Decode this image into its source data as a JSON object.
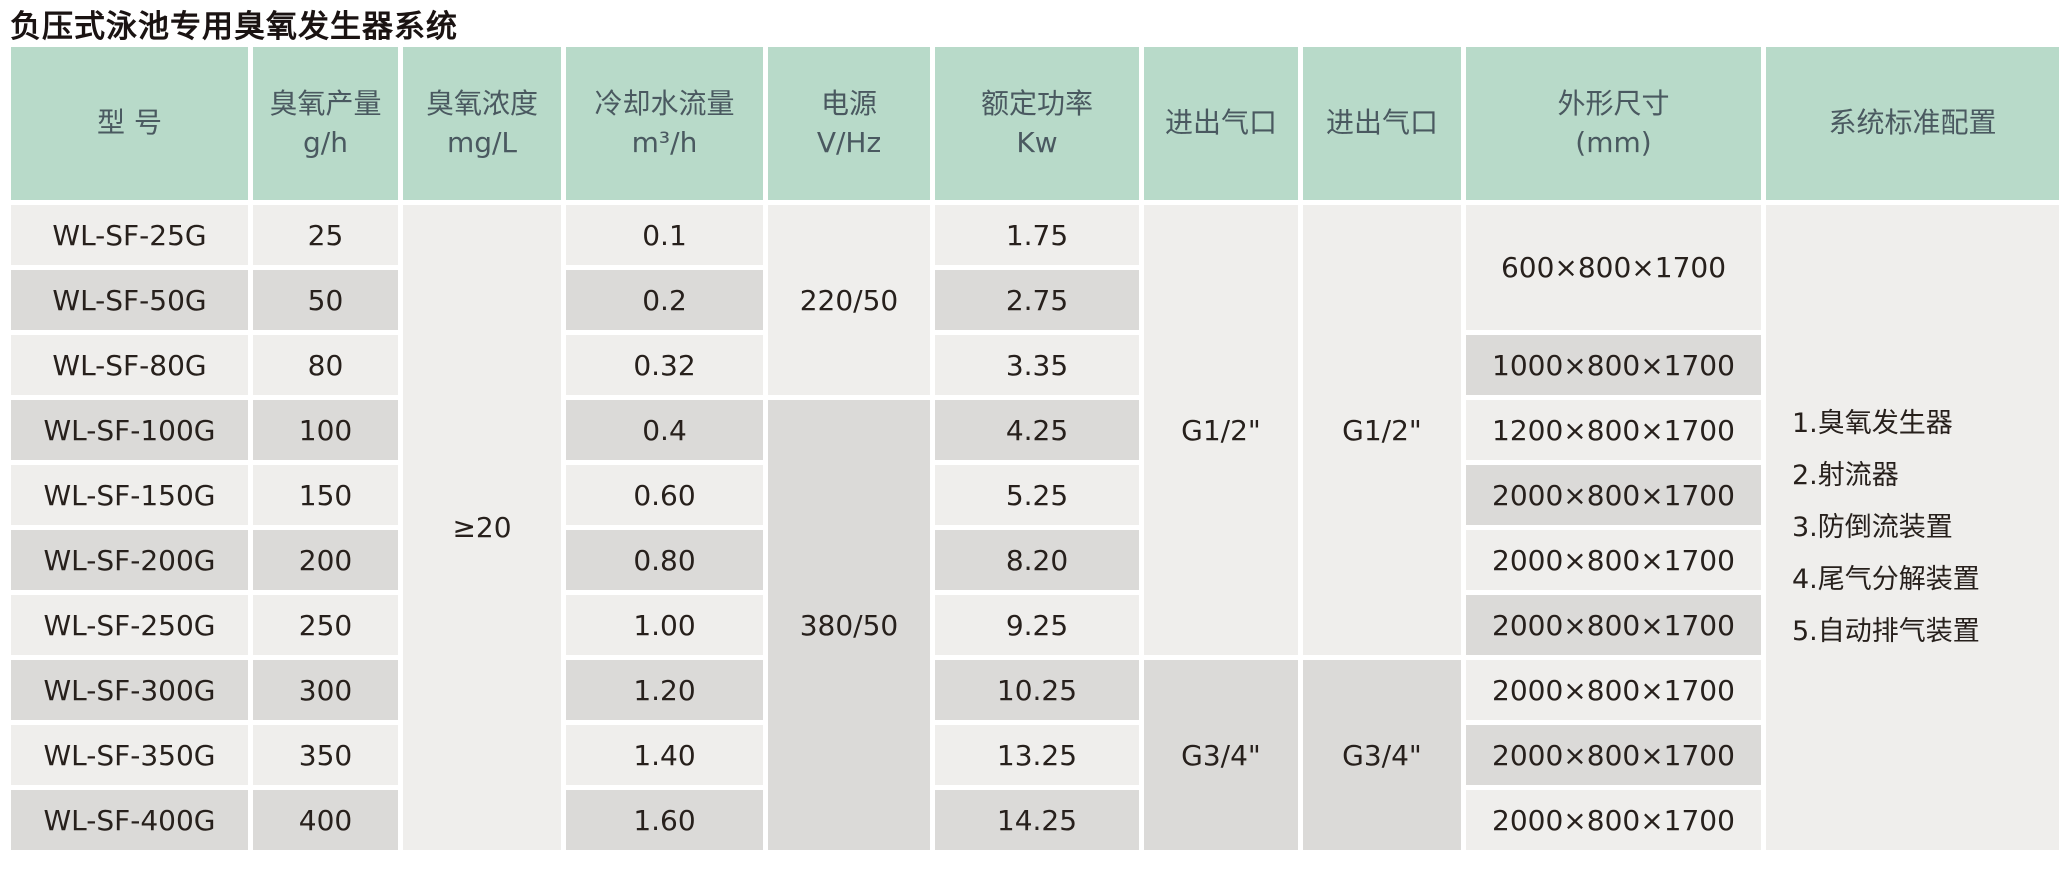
{
  "title": "负压式泳池专用臭氧发生器系统",
  "colors": {
    "header_bg": "#b8dac9",
    "header_text": "#4a5960",
    "row_light": "#efeeec",
    "row_dark": "#dbdad8",
    "body_text": "#27201c"
  },
  "table": {
    "headers": [
      {
        "l1": "型 号",
        "l2": ""
      },
      {
        "l1": "臭氧产量",
        "l2": "g/h"
      },
      {
        "l1": "臭氧浓度",
        "l2": "mg/L"
      },
      {
        "l1": "冷却水流量",
        "l2": "m³/h"
      },
      {
        "l1": "电源",
        "l2": "V/Hz"
      },
      {
        "l1": "额定功率",
        "l2": "Kw"
      },
      {
        "l1": "进出气口",
        "l2": ""
      },
      {
        "l1": "进出气口",
        "l2": ""
      },
      {
        "l1": "外形尺寸",
        "l2": "(mm)"
      },
      {
        "l1": "系统标准配置",
        "l2": ""
      }
    ],
    "rows": [
      {
        "model": "WL-SF-25G",
        "output": "25",
        "cooling": "0.1",
        "power": "1.75"
      },
      {
        "model": "WL-SF-50G",
        "output": "50",
        "cooling": "0.2",
        "power": "2.75"
      },
      {
        "model": "WL-SF-80G",
        "output": "80",
        "cooling": "0.32",
        "power": "3.35"
      },
      {
        "model": "WL-SF-100G",
        "output": "100",
        "cooling": "0.4",
        "power": "4.25"
      },
      {
        "model": "WL-SF-150G",
        "output": "150",
        "cooling": "0.60",
        "power": "5.25"
      },
      {
        "model": "WL-SF-200G",
        "output": "200",
        "cooling": "0.80",
        "power": "8.20"
      },
      {
        "model": "WL-SF-250G",
        "output": "250",
        "cooling": "1.00",
        "power": "9.25"
      },
      {
        "model": "WL-SF-300G",
        "output": "300",
        "cooling": "1.20",
        "power": "10.25"
      },
      {
        "model": "WL-SF-350G",
        "output": "350",
        "cooling": "1.40",
        "power": "13.25"
      },
      {
        "model": "WL-SF-400G",
        "output": "400",
        "cooling": "1.60",
        "power": "14.25"
      }
    ],
    "merged": {
      "concentration": "≥20",
      "power_supply_rows_1_3": "220/50",
      "power_supply_rows_4_10": "380/50",
      "gas_port_rows_1_7": "G1/2\"",
      "gas_port_rows_8_10": "G3/4\"",
      "dimension_rows_1_2": "600×800×1700"
    },
    "dimensions": {
      "row_3": "1000×800×1700",
      "row_4": "1200×800×1700",
      "row_5": "2000×800×1700",
      "row_6": "2000×800×1700",
      "row_7": "2000×800×1700",
      "row_8": "2000×800×1700",
      "row_9": "2000×800×1700",
      "row_10": "2000×800×1700"
    },
    "config": {
      "items": [
        "1.臭氧发生器",
        "2.射流器",
        "3.防倒流装置",
        "4.尾气分解装置",
        "5.自动排气装置"
      ]
    }
  }
}
